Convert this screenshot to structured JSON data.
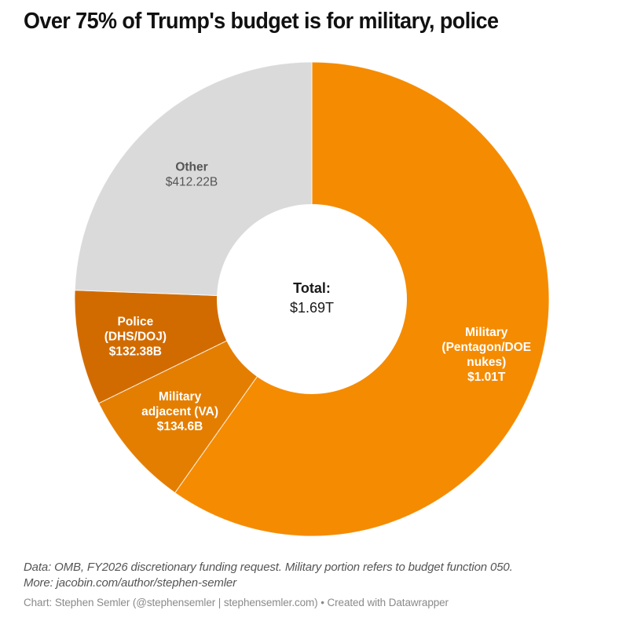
{
  "header": {
    "title": "Over 75% of Trump's budget is for military, police"
  },
  "chart_data": {
    "type": "pie",
    "variant": "donut",
    "title": "Over 75% of Trump's budget is for military, police",
    "unit": "USD billions",
    "start": "top, clockwise",
    "center_label": {
      "title": "Total:",
      "value": "$1.69T"
    },
    "slices": [
      {
        "name": "Military (Pentagon/DOE nukes)",
        "label_lines": [
          "Military",
          "(Pentagon/DOE",
          "nukes)",
          "$1.01T"
        ],
        "value": 1010,
        "value_label": "$1.01T",
        "color": "#f58b00",
        "text_color": "#ffffff"
      },
      {
        "name": "Military adjacent (VA)",
        "label_lines": [
          "Military",
          "adjacent (VA)",
          "$134.6B"
        ],
        "value": 134.6,
        "value_label": "$134.6B",
        "color": "#e47e00",
        "text_color": "#ffffff"
      },
      {
        "name": "Police (DHS/DOJ)",
        "label_lines": [
          "Police",
          "(DHS/DOJ)",
          "$132.38B"
        ],
        "value": 132.38,
        "value_label": "$132.38B",
        "color": "#d16b00",
        "text_color": "#ffffff"
      },
      {
        "name": "Other",
        "label_lines": [
          "Other",
          "$412.22B"
        ],
        "value": 412.22,
        "value_label": "$412.22B",
        "color": "#dadada",
        "text_color": "#555555"
      }
    ]
  },
  "footer": {
    "note_line1": "Data: OMB, FY2026 discretionary funding request. Military portion refers to budget function 050.",
    "note_line2": "More: jacobin.com/author/stephen-semler",
    "credit": "Chart: Stephen Semler (@stephensemler | stephensemler.com) • Created with Datawrapper"
  }
}
